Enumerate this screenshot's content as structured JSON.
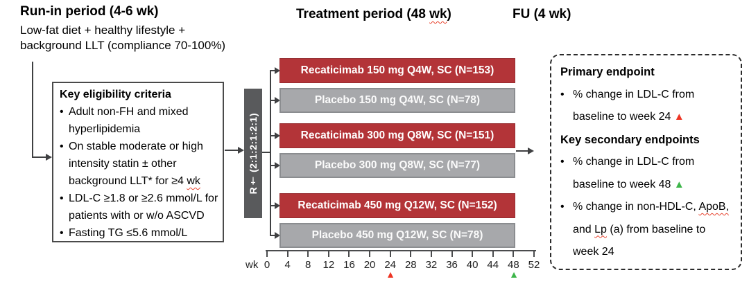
{
  "ui": {
    "bullet": "•",
    "triangle_up": "▲"
  },
  "colors": {
    "drug_red": "#b33438",
    "placebo_gray": "#a7a8ab",
    "randomization_gray": "#595a5c",
    "marker_red": "#ee3524",
    "marker_green": "#3cb549",
    "spellcheck_red": "#e8432e"
  },
  "header": {
    "runin_title": "Run-in period (4-6 wk)",
    "runin_subtitle_line1": "Low-fat diet + healthy lifestyle +",
    "runin_subtitle_line2": "background LLT (compliance 70-100%)",
    "treatment_title_pre": "Treatment period (48 ",
    "treatment_title_sq": "wk",
    "treatment_title_post": ")",
    "fu_title": "FU (4 wk)"
  },
  "eligibility": {
    "title": "Key eligibility criteria",
    "item1": "Adult non-FH and mixed hyperlipidemia",
    "item2_pre": "On stable moderate or high intensity statin ± other background LLT* for ≥4 ",
    "item2_sq": "wk",
    "item3": "LDL-C ≥1.8 or ≥2.6 mmol/L for patients with or w/o ASCVD",
    "item4": "Fasting TG ≤5.6 mmol/L"
  },
  "randomization": {
    "label": "R† (2:1:2:1:2:1)"
  },
  "arms": [
    {
      "label": "Recaticimab 150 mg Q4W, SC (N=153)",
      "type": "drug"
    },
    {
      "label": "Placebo 150 mg Q4W, SC (N=78)",
      "type": "placebo"
    },
    {
      "label": "Recaticimab 300 mg Q8W, SC (N=151)",
      "type": "drug"
    },
    {
      "label": "Placebo 300 mg Q8W, SC (N=77)",
      "type": "placebo"
    },
    {
      "label": "Recaticimab 450 mg Q12W, SC (N=152)",
      "type": "drug"
    },
    {
      "label": "Placebo 450 mg Q12W, SC (N=78)",
      "type": "placebo"
    }
  ],
  "timeline": {
    "unit_label": "wk",
    "ticks": [
      "0",
      "4",
      "8",
      "12",
      "16",
      "20",
      "24",
      "28",
      "32",
      "36",
      "40",
      "44",
      "48",
      "52"
    ],
    "primary_marker_week": "24",
    "secondary_marker_week": "48"
  },
  "endpoints": {
    "primary_title": "Primary endpoint",
    "primary_item": "% change in LDL-C from baseline to week 24 ",
    "secondary_title": "Key secondary endpoints",
    "secondary_item1": "% change in LDL-C from baseline to week 48 ",
    "secondary_item2_pre": "% change in non-HDL-C, ",
    "secondary_item2_sq1": "ApoB,",
    "secondary_item2_mid": " and ",
    "secondary_item2_sq2": "Lp",
    "secondary_item2_post": " (a) from baseline to week 24"
  }
}
